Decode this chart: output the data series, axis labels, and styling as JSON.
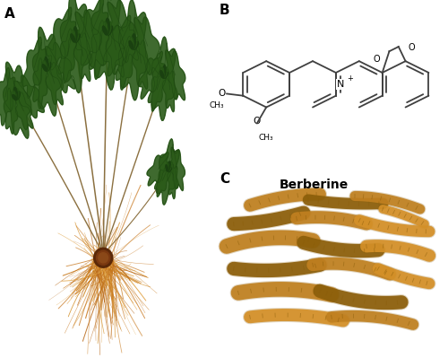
{
  "figure_width": 5.0,
  "figure_height": 3.99,
  "dpi": 100,
  "background_color": "#ffffff",
  "panel_A_label": "A",
  "panel_B_label": "B",
  "panel_C_label": "C",
  "berberine_label": "Berberine",
  "label_fontsize": 11,
  "label_fontweight": "bold",
  "berberine_fontsize": 10,
  "berberine_fontweight": "bold",
  "stem_color": "#8B7040",
  "leaf_dark": "#1a4010",
  "leaf_mid": "#2a5a18",
  "leaf_light": "#3a7020",
  "root_orange": "#c8781a",
  "root_dark": "#8B5010",
  "root_fiber": "#d4902a",
  "crown_color": "#6B3010",
  "rhizome_main": "#b87818",
  "rhizome_dark": "#7a5010",
  "rhizome_light": "#d09020"
}
